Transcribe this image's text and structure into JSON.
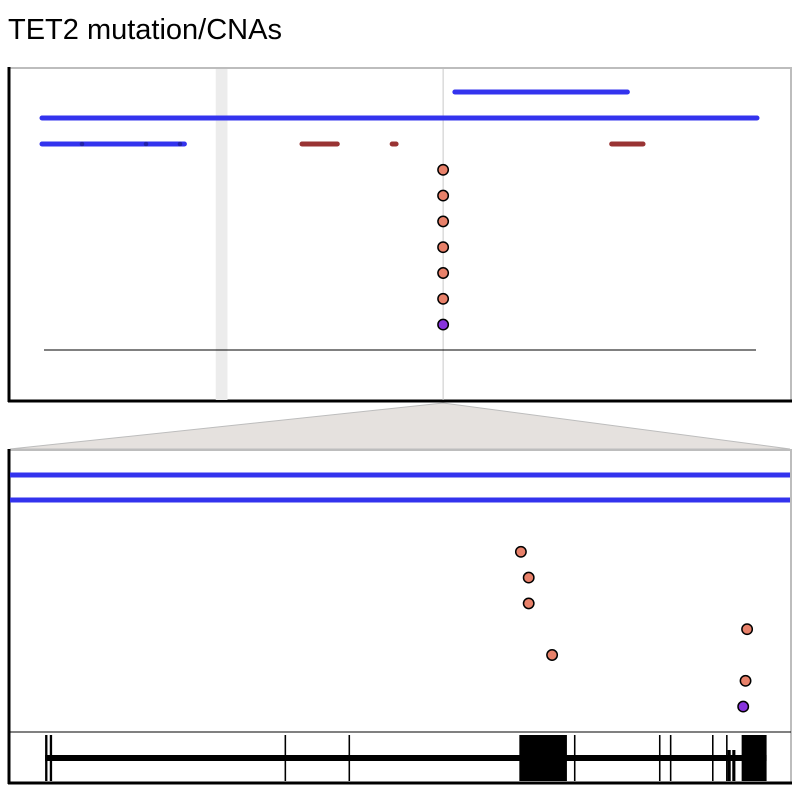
{
  "title": "TET2 mutation/CNAs",
  "colors": {
    "cna_loss": "#3333ee",
    "cna_gain": "#993333",
    "mutation": "#e8816a",
    "mutation_alt": "#8833dd",
    "highlight": "#ececec",
    "zoom_connector": "#e5e1de",
    "frame": "#bdbdbd",
    "axis": "#000000"
  },
  "overview_panel": {
    "cna_tracks": [
      {
        "type": "loss",
        "row": 0,
        "segments": [
          [
            0.57,
            0.79
          ]
        ]
      },
      {
        "type": "loss",
        "row": 1,
        "segments": [
          [
            0.04,
            1.0
          ]
        ]
      },
      {
        "type": "loss",
        "row": 2,
        "segments": [
          [
            0.0,
            0.225
          ]
        ]
      },
      {
        "type": "gain",
        "row": 2,
        "segments": [
          [
            0.375,
            0.42
          ],
          [
            0.49,
            0.495
          ],
          [
            0.77,
            0.81
          ]
        ]
      }
    ],
    "highlight_region": [
      0.265,
      0.28
    ],
    "marker_position": 0.555,
    "mutations": [
      {
        "kind": "normal",
        "level": 1
      },
      {
        "kind": "normal",
        "level": 2
      },
      {
        "kind": "normal",
        "level": 3
      },
      {
        "kind": "normal",
        "level": 4
      },
      {
        "kind": "normal",
        "level": 5
      },
      {
        "kind": "normal",
        "level": 6
      },
      {
        "kind": "alt",
        "level": 7
      }
    ]
  },
  "zoom_panel": {
    "cna_tracks": [
      {
        "type": "loss",
        "row": 0,
        "segments": [
          [
            0.0,
            1.0
          ]
        ]
      },
      {
        "type": "loss",
        "row": 1,
        "segments": [
          [
            0.0,
            1.0
          ]
        ]
      }
    ],
    "mutations": [
      {
        "kind": "normal",
        "position": 0.655,
        "level": 1
      },
      {
        "kind": "normal",
        "position": 0.665,
        "level": 2
      },
      {
        "kind": "normal",
        "position": 0.665,
        "level": 3
      },
      {
        "kind": "normal",
        "position": 0.945,
        "level": 4
      },
      {
        "kind": "normal",
        "position": 0.695,
        "level": 5
      },
      {
        "kind": "normal",
        "position": 0.943,
        "level": 6
      },
      {
        "kind": "alt",
        "position": 0.94,
        "level": 7
      }
    ],
    "gene_model": {
      "span": [
        0.045,
        0.97
      ],
      "exons": [
        [
          0.045,
          0.048
        ],
        [
          0.051,
          0.054
        ],
        [
          0.352,
          0.354
        ],
        [
          0.434,
          0.436
        ],
        [
          0.653,
          0.714
        ],
        [
          0.723,
          0.725
        ],
        [
          0.832,
          0.834
        ],
        [
          0.846,
          0.848
        ],
        [
          0.9,
          0.902
        ],
        [
          0.918,
          0.92
        ],
        [
          0.938,
          0.97
        ]
      ],
      "short_exons": [
        [
          0.92,
          0.924
        ],
        [
          0.926,
          0.93
        ]
      ]
    }
  }
}
